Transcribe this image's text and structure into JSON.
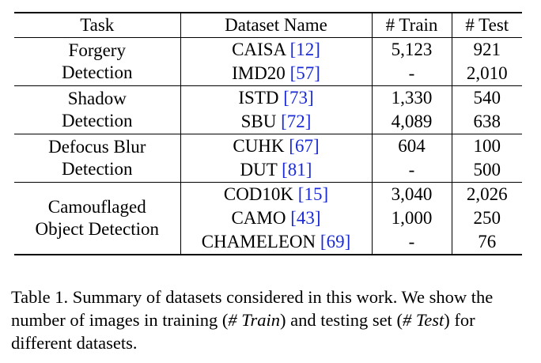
{
  "table": {
    "headers": [
      "Task",
      "Dataset Name",
      "# Train",
      "# Test"
    ],
    "groups": [
      {
        "task_line1": "Forgery",
        "task_line2": "Detection",
        "rows": [
          {
            "name": "CAISA",
            "cite": "12",
            "train": "5,123",
            "test": "921"
          },
          {
            "name": "IMD20",
            "cite": "57",
            "train": "-",
            "test": "2,010"
          }
        ]
      },
      {
        "task_line1": "Shadow",
        "task_line2": "Detection",
        "rows": [
          {
            "name": "ISTD",
            "cite": "73",
            "train": "1,330",
            "test": "540"
          },
          {
            "name": "SBU",
            "cite": "72",
            "train": "4,089",
            "test": "638"
          }
        ]
      },
      {
        "task_line1": "Defocus Blur",
        "task_line2": "Detection",
        "rows": [
          {
            "name": "CUHK",
            "cite": "67",
            "train": "604",
            "test": "100"
          },
          {
            "name": "DUT",
            "cite": "81",
            "train": "-",
            "test": "500"
          }
        ]
      },
      {
        "task_line1": "Camouflaged",
        "task_line2": "Object Detection",
        "rows": [
          {
            "name": "COD10K",
            "cite": "15",
            "train": "3,040",
            "test": "2,026"
          },
          {
            "name": "CAMO",
            "cite": "43",
            "train": "1,000",
            "test": "250"
          },
          {
            "name": "CHAMELEON",
            "cite": "69",
            "train": "-",
            "test": "76"
          }
        ]
      }
    ]
  },
  "caption": {
    "part1": "Table 1. Summary of datasets considered in this work. We show the number of images in training (",
    "train_term": "# Train",
    "part2": ") and testing set (",
    "test_term": "# Test",
    "part3": ") for different datasets."
  }
}
